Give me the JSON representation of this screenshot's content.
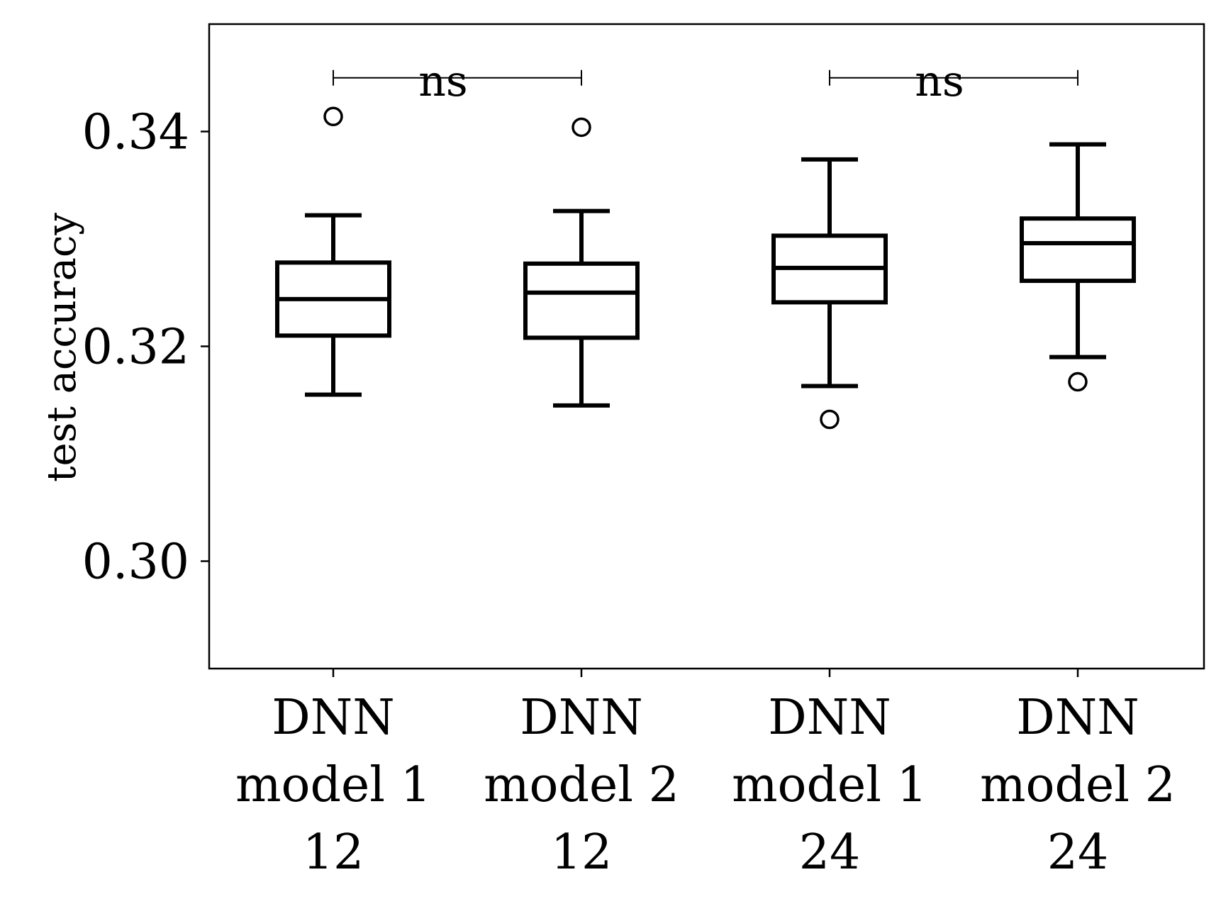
{
  "chart_data": {
    "type": "box",
    "title": "",
    "xlabel": "",
    "ylabel": "test accuracy",
    "ylim": [
      0.29,
      0.35
    ],
    "yticks": [
      0.3,
      0.32,
      0.34
    ],
    "ytick_labels": [
      "0.30",
      "0.32",
      "0.34"
    ],
    "grid": false,
    "categories": [
      [
        "DNN",
        "model 1",
        "12"
      ],
      [
        "DNN",
        "model 2",
        "12"
      ],
      [
        "DNN",
        "model 1",
        "24"
      ],
      [
        "DNN",
        "model 2",
        "24"
      ]
    ],
    "boxes": [
      {
        "whisker_low": 0.3155,
        "q1": 0.321,
        "median": 0.3244,
        "q3": 0.3278,
        "whisker_high": 0.3322,
        "outliers": [
          0.3414
        ]
      },
      {
        "whisker_low": 0.3145,
        "q1": 0.3208,
        "median": 0.325,
        "q3": 0.3277,
        "whisker_high": 0.3326,
        "outliers": [
          0.3404
        ]
      },
      {
        "whisker_low": 0.3163,
        "q1": 0.3241,
        "median": 0.3273,
        "q3": 0.3303,
        "whisker_high": 0.3374,
        "outliers": [
          0.3132
        ]
      },
      {
        "whisker_low": 0.319,
        "q1": 0.3261,
        "median": 0.3296,
        "q3": 0.3319,
        "whisker_high": 0.3388,
        "outliers": [
          0.3167
        ]
      }
    ],
    "annotations": [
      {
        "from": 0,
        "to": 1,
        "y": 0.345,
        "text": "ns"
      },
      {
        "from": 2,
        "to": 3,
        "y": 0.345,
        "text": "ns"
      }
    ]
  }
}
